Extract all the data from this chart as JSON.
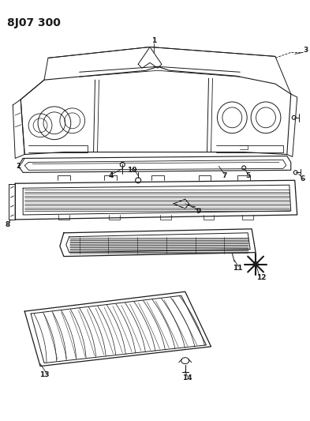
{
  "title": "8J07 300",
  "bg_color": "#ffffff",
  "line_color": "#1a1a1a",
  "title_fontsize": 10,
  "fig_width": 3.93,
  "fig_height": 5.33,
  "dpi": 100
}
